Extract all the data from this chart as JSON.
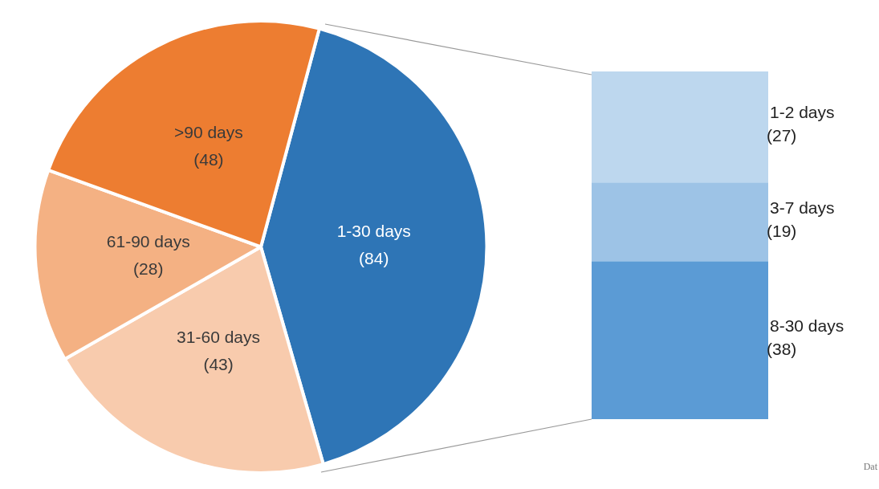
{
  "chart_data": [
    {
      "type": "pie",
      "categories": [
        "1-30 days",
        "31-60 days",
        "61-90 days",
        ">90 days"
      ],
      "values": [
        84,
        43,
        28,
        48
      ],
      "value_labels": [
        "(84)",
        "(43)",
        "(28)",
        "(48)"
      ],
      "colors": [
        "#2e75b6",
        "#f8cbad",
        "#f4b183",
        "#ed7d31"
      ],
      "legend": false
    },
    {
      "type": "bar",
      "stacked": true,
      "categories": [
        null
      ],
      "tick_labels": false,
      "legend": false,
      "annotations": [
        "Dat"
      ],
      "series": [
        {
          "name": "8-30 days",
          "color": "#5b9bd5",
          "values": [
            38
          ],
          "value_labels": [
            "(38)"
          ]
        },
        {
          "name": "3-7 days",
          "color": "#9dc3e6",
          "values": [
            19
          ],
          "value_labels": [
            "(19)"
          ]
        },
        {
          "name": "1-2 days",
          "color": "#bdd7ee",
          "values": [
            27
          ],
          "value_labels": [
            "(27)"
          ]
        }
      ]
    }
  ]
}
